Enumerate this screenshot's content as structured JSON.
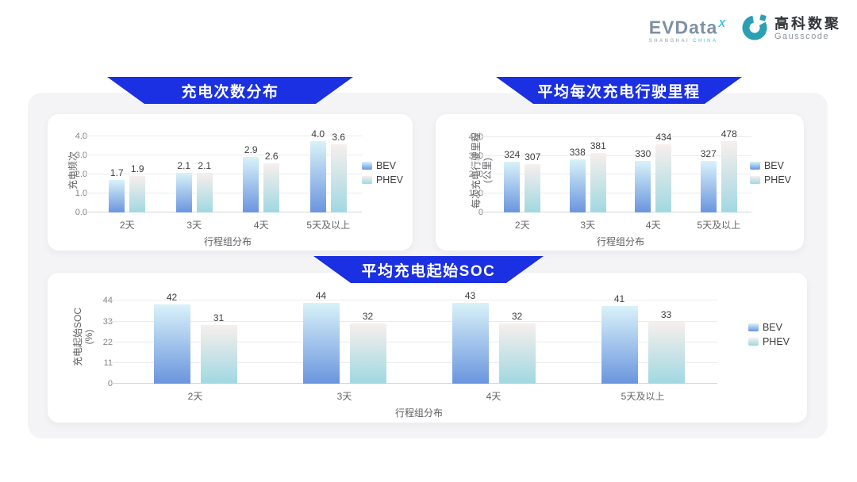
{
  "logo": {
    "evdata_text": "EVData",
    "evdata_sup": "X",
    "evdata_sub_left": "SHANGHAI",
    "evdata_sub_right": "CHINA",
    "gausscode_cn": "高科数聚",
    "gausscode_en": "Gausscode"
  },
  "colors": {
    "banner_blue": "#1a30e2",
    "panel_bg": "#f4f4f6",
    "card_bg": "#ffffff",
    "gausscode_teal": "#2b9fb3",
    "evdata_gray": "#7e90a4",
    "evdata_cyan": "#3ec2dd",
    "series": [
      {
        "name": "BEV",
        "top": "#d9f2f9",
        "bottom": "#6a95de"
      },
      {
        "name": "PHEV",
        "top": "#f7efed",
        "bottom": "#a0d8e1"
      }
    ]
  },
  "chart_data": [
    {
      "type": "bar",
      "title": "充电次数分布",
      "categories": [
        "2天",
        "3天",
        "4天",
        "5天及以上"
      ],
      "series": [
        {
          "name": "BEV",
          "values": [
            1.7,
            2.1,
            2.9,
            4.0
          ],
          "labels": [
            "1.7",
            "2.1",
            "2.9",
            "4.0"
          ]
        },
        {
          "name": "PHEV",
          "values": [
            1.9,
            2.1,
            2.6,
            3.6
          ],
          "labels": [
            "1.9",
            "2.1",
            "2.6",
            "3.6"
          ]
        }
      ],
      "xlabel": "行程组分布",
      "ylabel_lines": [
        "充电频次"
      ],
      "tick_values": [
        0,
        1,
        2,
        3,
        4
      ],
      "tick_labels": [
        "0.0",
        "1.0",
        "2.0",
        "3.0",
        "4.0"
      ],
      "ylim": [
        0,
        4.42
      ],
      "grid": true,
      "legend_position": "right"
    },
    {
      "type": "bar",
      "title": "平均每次充电行驶里程",
      "categories": [
        "2天",
        "3天",
        "4天",
        "5天及以上"
      ],
      "series": [
        {
          "name": "BEV",
          "values": [
            324,
            338,
            330,
            327
          ],
          "labels": [
            "324",
            "338",
            "330",
            "327"
          ]
        },
        {
          "name": "PHEV",
          "values": [
            307,
            381,
            434,
            478
          ],
          "labels": [
            "307",
            "381",
            "434",
            "478"
          ]
        }
      ],
      "xlabel": "行程组分布",
      "ylabel_lines": [
        "每次充电行驶里程",
        "(公里)"
      ],
      "tick_values": [
        0,
        120,
        240,
        360,
        480
      ],
      "tick_labels": [
        "0",
        "120",
        "240",
        "360",
        "480"
      ],
      "ylim": [
        0,
        535
      ],
      "grid": true,
      "legend_position": "right"
    },
    {
      "type": "bar",
      "title": "平均充电起始SOC",
      "categories": [
        "2天",
        "3天",
        "4天",
        "5天及以上"
      ],
      "series": [
        {
          "name": "BEV",
          "values": [
            42,
            44,
            43,
            41
          ],
          "labels": [
            "42",
            "44",
            "43",
            "41"
          ]
        },
        {
          "name": "PHEV",
          "values": [
            31,
            32,
            32,
            33
          ],
          "labels": [
            "31",
            "32",
            "32",
            "33"
          ]
        }
      ],
      "xlabel": "行程组分布",
      "ylabel_lines": [
        "充电起始SOC",
        "(%)"
      ],
      "tick_values": [
        0,
        11,
        22,
        33,
        44
      ],
      "tick_labels": [
        "0",
        "11",
        "22",
        "33",
        "44"
      ],
      "ylim": [
        0,
        49.6
      ],
      "grid": true,
      "legend_position": "right"
    }
  ]
}
